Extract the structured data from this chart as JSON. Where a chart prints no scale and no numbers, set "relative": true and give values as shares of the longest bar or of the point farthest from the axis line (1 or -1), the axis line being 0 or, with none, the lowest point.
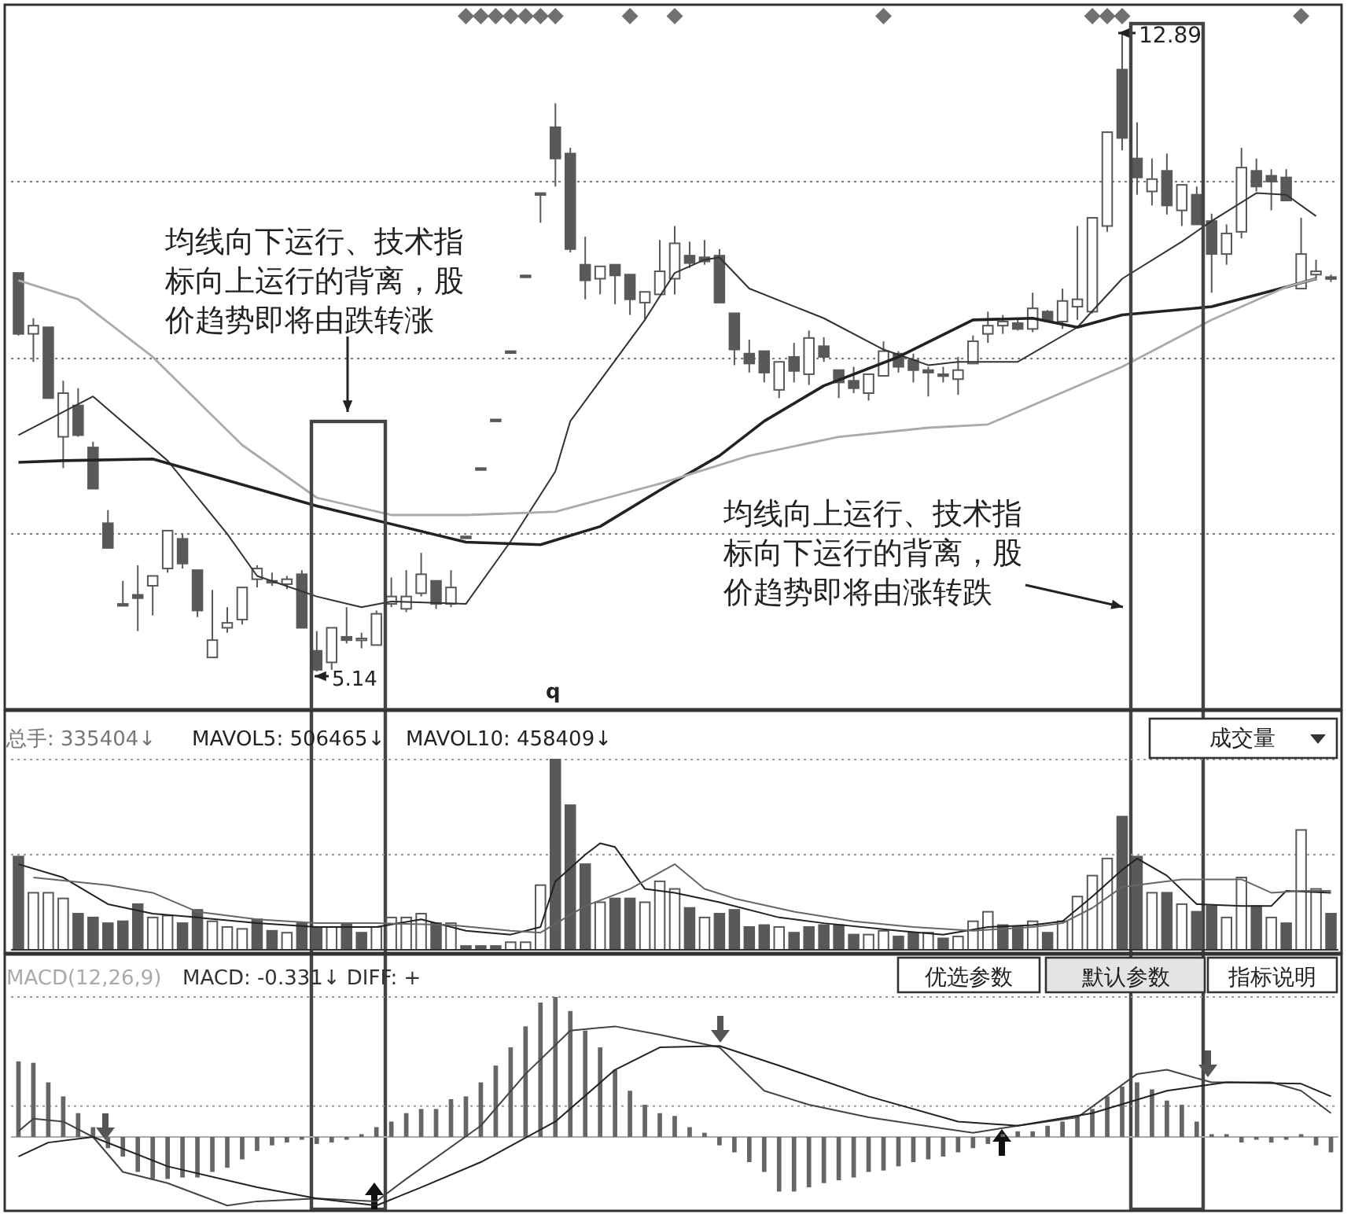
{
  "chart_data": [
    {
      "type": "candlestick",
      "color": "#595959",
      "grid": "y",
      "categories": [
        null,
        null,
        null,
        null,
        null,
        null,
        null,
        null,
        null,
        null,
        null,
        null,
        null,
        null,
        null,
        null,
        null,
        null,
        null,
        null,
        null,
        null,
        null,
        null,
        null,
        null,
        null,
        null,
        null,
        null,
        null,
        null,
        null,
        null,
        null,
        null,
        null,
        null,
        null,
        null,
        null,
        null,
        null,
        null,
        null,
        null,
        null,
        null,
        null,
        null,
        null,
        null,
        null,
        null,
        null,
        null,
        null,
        null,
        null,
        null,
        null,
        null,
        null,
        null,
        null,
        null,
        null,
        null,
        null,
        null,
        null,
        null,
        null,
        null,
        null,
        null,
        null,
        null,
        null,
        null,
        null,
        null,
        null,
        null,
        null,
        null,
        null,
        null,
        null
      ],
      "ylim": [
        4.7,
        13.2
      ],
      "yticks": [
        {
          "value": 6.81,
          "label": null
        },
        {
          "value": 8.94,
          "label": null
        },
        {
          "value": 11.09,
          "label": null
        }
      ],
      "ohlc": [
        [
          9.98,
          9.98,
          9.22,
          9.24
        ],
        [
          9.24,
          9.43,
          8.9,
          9.34
        ],
        [
          9.32,
          9.32,
          8.46,
          8.46
        ],
        [
          7.99,
          8.67,
          7.61,
          8.52
        ],
        [
          8.37,
          8.58,
          7.99,
          8.01
        ],
        [
          7.86,
          7.93,
          7.36,
          7.36
        ],
        [
          6.94,
          7.1,
          6.64,
          6.64
        ],
        [
          5.96,
          6.24,
          5.96,
          5.96
        ],
        [
          6.07,
          6.43,
          5.63,
          6.03
        ],
        [
          6.18,
          6.3,
          5.82,
          6.3
        ],
        [
          6.39,
          6.85,
          6.34,
          6.85
        ],
        [
          6.75,
          6.81,
          6.39,
          6.45
        ],
        [
          6.37,
          6.37,
          5.8,
          5.88
        ],
        [
          5.31,
          6.13,
          5.31,
          5.52
        ],
        [
          5.67,
          5.92,
          5.61,
          5.73
        ],
        [
          5.77,
          6.16,
          5.71,
          6.16
        ],
        [
          6.26,
          6.43,
          6.16,
          6.39
        ],
        [
          6.24,
          6.34,
          6.18,
          6.22
        ],
        [
          6.2,
          6.3,
          6.14,
          6.26
        ],
        [
          6.32,
          6.37,
          5.67,
          5.67
        ],
        [
          5.39,
          5.63,
          5.14,
          5.16
        ],
        [
          5.25,
          5.67,
          5.16,
          5.67
        ],
        [
          5.56,
          5.92,
          5.48,
          5.52
        ],
        [
          5.52,
          5.61,
          5.42,
          5.54
        ],
        [
          5.46,
          5.88,
          5.46,
          5.84
        ],
        [
          5.96,
          6.28,
          5.92,
          6.05
        ],
        [
          5.9,
          6.37,
          5.86,
          6.05
        ],
        [
          6.09,
          6.58,
          6.05,
          6.32
        ],
        [
          6.24,
          6.24,
          5.9,
          5.96
        ],
        [
          5.96,
          6.37,
          5.92,
          6.16
        ],
        [
          6.78,
          6.78,
          6.78,
          6.78
        ],
        [
          7.61,
          7.61,
          7.61,
          7.61
        ],
        [
          8.2,
          8.2,
          8.2,
          8.2
        ],
        [
          9.03,
          9.03,
          9.03,
          9.03
        ],
        [
          9.95,
          9.95,
          9.95,
          9.95
        ],
        [
          10.95,
          10.95,
          10.59,
          10.95
        ],
        [
          11.75,
          12.04,
          11.03,
          11.37
        ],
        [
          11.43,
          11.5,
          10.23,
          10.27
        ],
        [
          10.08,
          10.42,
          9.66,
          9.89
        ],
        [
          9.91,
          10.06,
          9.72,
          10.06
        ],
        [
          10.08,
          10.08,
          9.6,
          9.95
        ],
        [
          9.96,
          9.96,
          9.47,
          9.66
        ],
        [
          9.62,
          9.75,
          9.41,
          9.75
        ],
        [
          9.72,
          10.38,
          9.72,
          10.0
        ],
        [
          9.91,
          10.55,
          9.72,
          10.34
        ],
        [
          10.19,
          10.36,
          10.04,
          10.1
        ],
        [
          10.17,
          10.38,
          10.08,
          10.12
        ],
        [
          10.19,
          10.27,
          9.62,
          9.62
        ],
        [
          9.49,
          9.49,
          8.86,
          9.05
        ],
        [
          9.0,
          9.17,
          8.77,
          8.88
        ],
        [
          9.03,
          9.03,
          8.65,
          8.77
        ],
        [
          8.56,
          8.9,
          8.46,
          8.9
        ],
        [
          8.96,
          9.13,
          8.65,
          8.79
        ],
        [
          8.75,
          9.28,
          8.62,
          9.19
        ],
        [
          9.09,
          9.2,
          8.9,
          8.96
        ],
        [
          8.8,
          8.8,
          8.46,
          8.65
        ],
        [
          8.67,
          8.84,
          8.52,
          8.58
        ],
        [
          8.52,
          8.75,
          8.43,
          8.75
        ],
        [
          8.73,
          9.15,
          8.73,
          9.03
        ],
        [
          9.0,
          9.03,
          8.77,
          8.84
        ],
        [
          8.92,
          9.0,
          8.65,
          8.8
        ],
        [
          8.8,
          8.84,
          8.48,
          8.77
        ],
        [
          8.75,
          8.84,
          8.65,
          8.73
        ],
        [
          8.69,
          8.96,
          8.5,
          8.8
        ],
        [
          8.88,
          9.22,
          8.88,
          9.15
        ],
        [
          9.24,
          9.51,
          9.13,
          9.34
        ],
        [
          9.34,
          9.47,
          9.24,
          9.39
        ],
        [
          9.37,
          9.43,
          9.28,
          9.3
        ],
        [
          9.3,
          9.74,
          9.26,
          9.55
        ],
        [
          9.51,
          9.53,
          9.39,
          9.41
        ],
        [
          9.39,
          9.79,
          9.3,
          9.64
        ],
        [
          9.57,
          10.55,
          9.41,
          9.66
        ],
        [
          9.51,
          10.65,
          9.49,
          10.65
        ],
        [
          10.55,
          11.69,
          10.48,
          11.69
        ],
        [
          12.45,
          12.89,
          11.47,
          11.62
        ],
        [
          11.37,
          11.81,
          10.93,
          11.14
        ],
        [
          10.97,
          11.37,
          10.8,
          11.12
        ],
        [
          11.22,
          11.43,
          10.69,
          10.8
        ],
        [
          10.74,
          11.05,
          10.55,
          11.05
        ],
        [
          10.93,
          11.03,
          10.57,
          10.57
        ],
        [
          10.61,
          10.7,
          9.74,
          10.21
        ],
        [
          10.21,
          10.57,
          10.08,
          10.46
        ],
        [
          10.48,
          11.5,
          10.4,
          11.26
        ],
        [
          11.22,
          11.37,
          10.97,
          11.03
        ],
        [
          11.16,
          11.24,
          10.74,
          11.09
        ],
        [
          11.14,
          11.24,
          10.86,
          10.86
        ],
        [
          9.79,
          10.65,
          9.79,
          10.21
        ],
        [
          9.96,
          10.14,
          9.89,
          10.0
        ],
        [
          9.93,
          9.96,
          9.87,
          9.91
        ]
      ],
      "series": [
        {
          "type": "line",
          "color": "#333333",
          "values": [
            8.01,
            null,
            null,
            null,
            null,
            8.48,
            null,
            null,
            null,
            null,
            7.7,
            null,
            null,
            null,
            6.81,
            null,
            6.3,
            null,
            null,
            null,
            6.05,
            null,
            null,
            5.92,
            null,
            5.99,
            null,
            null,
            null,
            null,
            5.96,
            null,
            null,
            6.72,
            null,
            null,
            7.57,
            8.18,
            null,
            null,
            null,
            null,
            9.41,
            null,
            9.98,
            null,
            10.14,
            10.17,
            null,
            9.79,
            null,
            null,
            null,
            null,
            9.43,
            null,
            null,
            null,
            9.05,
            null,
            null,
            8.86,
            null,
            8.9,
            null,
            null,
            null,
            8.9,
            null,
            null,
            null,
            9.32,
            null,
            null,
            9.91,
            null,
            null,
            null,
            10.36,
            null,
            10.61,
            null,
            null,
            10.95,
            null,
            10.93,
            null,
            10.67,
            null
          ]
        },
        {
          "type": "line",
          "color": "#222222",
          "values": [
            7.68,
            null,
            null,
            7.7,
            null,
            null,
            null,
            null,
            null,
            7.72,
            null,
            null,
            null,
            null,
            null,
            null,
            null,
            null,
            null,
            null,
            7.15,
            null,
            null,
            null,
            null,
            null,
            null,
            null,
            null,
            null,
            6.71,
            null,
            null,
            null,
            null,
            6.68,
            null,
            null,
            null,
            6.9,
            null,
            null,
            null,
            7.34,
            null,
            null,
            null,
            7.76,
            null,
            null,
            8.18,
            null,
            null,
            null,
            8.61,
            null,
            null,
            null,
            null,
            8.96,
            null,
            null,
            null,
            null,
            9.41,
            null,
            null,
            null,
            9.43,
            null,
            null,
            9.32,
            null,
            null,
            9.47,
            null,
            null,
            null,
            null,
            null,
            9.57,
            null,
            null,
            null,
            null,
            9.81,
            null,
            9.91,
            null
          ]
        },
        {
          "type": "line",
          "color": "#aaaaaa",
          "values": [
            9.89,
            null,
            null,
            null,
            9.66,
            null,
            null,
            null,
            null,
            8.96,
            null,
            null,
            null,
            null,
            null,
            7.89,
            null,
            null,
            null,
            null,
            7.25,
            null,
            null,
            null,
            null,
            7.04,
            null,
            null,
            null,
            null,
            7.04,
            null,
            null,
            null,
            null,
            null,
            7.08,
            null,
            null,
            null,
            null,
            null,
            null,
            7.42,
            null,
            null,
            null,
            null,
            null,
            7.76,
            null,
            null,
            null,
            null,
            null,
            7.99,
            null,
            null,
            null,
            null,
            null,
            8.1,
            null,
            null,
            null,
            8.14,
            null,
            null,
            null,
            null,
            null,
            null,
            null,
            null,
            8.84,
            null,
            null,
            null,
            null,
            null,
            9.41,
            null,
            null,
            null,
            null,
            9.81,
            null,
            9.91,
            null
          ]
        },
        {
          "type": "scatter",
          "marker": "diamond",
          "color": "#707070",
          "values": [
            null,
            null,
            null,
            null,
            null,
            null,
            null,
            null,
            null,
            null,
            null,
            null,
            null,
            null,
            null,
            null,
            null,
            null,
            null,
            null,
            null,
            null,
            null,
            null,
            null,
            null,
            null,
            null,
            null,
            null,
            13.1,
            13.1,
            13.1,
            13.1,
            13.1,
            13.1,
            13.1,
            null,
            null,
            null,
            null,
            13.1,
            null,
            null,
            13.1,
            null,
            null,
            null,
            null,
            null,
            null,
            null,
            null,
            null,
            null,
            null,
            null,
            null,
            13.1,
            null,
            null,
            null,
            null,
            null,
            null,
            null,
            null,
            null,
            null,
            null,
            null,
            null,
            13.1,
            13.1,
            13.1,
            null,
            null,
            null,
            null,
            null,
            null,
            null,
            null,
            null,
            null,
            null,
            13.1,
            null,
            null
          ]
        }
      ],
      "annotations": [
        "均线向下运行、技术指标向上运行的背离，股价趋势即将由跌转涨",
        "均线向上运行、技术指标向下运行的背离，股价趋势即将由涨转跌",
        "12.89",
        "5.14",
        "q"
      ]
    },
    {
      "type": "bar",
      "relative": true,
      "categories": [
        null,
        null,
        null,
        null,
        null,
        null,
        null,
        null,
        null,
        null,
        null,
        null,
        null,
        null,
        null,
        null,
        null,
        null,
        null,
        null,
        null,
        null,
        null,
        null,
        null,
        null,
        null,
        null,
        null,
        null,
        null,
        null,
        null,
        null,
        null,
        null,
        null,
        null,
        null,
        null,
        null,
        null,
        null,
        null,
        null,
        null,
        null,
        null,
        null,
        null,
        null,
        null,
        null,
        null,
        null,
        null,
        null,
        null,
        null,
        null,
        null,
        null,
        null,
        null,
        null,
        null,
        null,
        null,
        null,
        null,
        null,
        null,
        null,
        null,
        null,
        null,
        null,
        null,
        null,
        null,
        null,
        null,
        null,
        null,
        null,
        null,
        null,
        null,
        null
      ],
      "ref_lines": [
        {
          "axis": "y",
          "value": 1,
          "line_style": "dotted",
          "color": "#999999"
        },
        {
          "axis": "y",
          "value": 0.5,
          "line_style": "dotted",
          "color": "#999999"
        }
      ],
      "series": [
        {
          "type": "bar",
          "color": "#595959",
          "values": [
            0.49,
            0.3,
            0.3,
            0.27,
            0.19,
            0.17,
            0.14,
            0.15,
            0.24,
            0.17,
            0.18,
            0.14,
            0.21,
            0.15,
            0.12,
            0.11,
            0.16,
            0.1,
            0.09,
            0.14,
            0.12,
            0.12,
            0.14,
            0.09,
            0.12,
            0.17,
            0.17,
            0.19,
            0.14,
            0.14,
            0.02,
            0.02,
            0.02,
            0.04,
            0.04,
            0.34,
            1,
            0.76,
            0.45,
            0.25,
            0.27,
            0.27,
            0.25,
            0.36,
            0.32,
            0.22,
            0.17,
            0.19,
            0.21,
            0.12,
            0.13,
            0.12,
            0.09,
            0.12,
            0.13,
            0.13,
            0.08,
            0.08,
            0.1,
            0.07,
            0.09,
            0.09,
            0.06,
            0.07,
            0.15,
            0.2,
            0.13,
            0.12,
            0.15,
            0.09,
            0.15,
            0.28,
            0.39,
            0.48,
            0.7,
            0.49,
            0.3,
            0.3,
            0.24,
            0.2,
            0.23,
            0.17,
            0.38,
            0.23,
            0.17,
            0.14,
            0.63,
            0.32,
            0.19
          ],
          "colors": [
            "#595959",
            "#ffffff",
            "#ffffff",
            "#ffffff",
            "#595959",
            "#595959",
            "#595959",
            "#595959",
            "#595959",
            "#ffffff",
            "#ffffff",
            "#595959",
            "#595959",
            "#ffffff",
            "#ffffff",
            "#ffffff",
            "#595959",
            "#595959",
            "#ffffff",
            "#595959",
            "#595959",
            "#ffffff",
            "#595959",
            "#595959",
            "#ffffff",
            "#ffffff",
            "#ffffff",
            "#ffffff",
            "#595959",
            "#ffffff",
            "#595959",
            "#595959",
            "#595959",
            "#ffffff",
            "#ffffff",
            "#ffffff",
            "#595959",
            "#595959",
            "#595959",
            "#ffffff",
            "#595959",
            "#595959",
            "#ffffff",
            "#ffffff",
            "#ffffff",
            "#595959",
            "#ffffff",
            "#595959",
            "#595959",
            "#595959",
            "#595959",
            "#ffffff",
            "#595959",
            "#595959",
            "#595959",
            "#595959",
            "#595959",
            "#ffffff",
            "#ffffff",
            "#595959",
            "#595959",
            "#ffffff",
            "#595959",
            "#ffffff",
            "#ffffff",
            "#ffffff",
            "#595959",
            "#595959",
            "#ffffff",
            "#595959",
            "#ffffff",
            "#ffffff",
            "#ffffff",
            "#ffffff",
            "#595959",
            "#595959",
            "#ffffff",
            "#595959",
            "#ffffff",
            "#595959",
            "#595959",
            "#ffffff",
            "#ffffff",
            "#595959",
            "#ffffff",
            "#595959",
            "#ffffff",
            "#ffffff",
            "#595959"
          ]
        },
        {
          "type": "line",
          "color": "#222222",
          "values": [
            0.45,
            null,
            null,
            0.38,
            null,
            null,
            0.24,
            null,
            null,
            0.19,
            null,
            null,
            0.17,
            null,
            null,
            null,
            0.14,
            null,
            null,
            null,
            0.12,
            null,
            null,
            null,
            0.12,
            null,
            null,
            0.16,
            null,
            null,
            0.1,
            null,
            null,
            0.08,
            null,
            0.12,
            0.36,
            null,
            0.5,
            0.56,
            0.54,
            null,
            0.32,
            null,
            0.3,
            null,
            null,
            0.25,
            null,
            null,
            null,
            0.17,
            null,
            null,
            0.14,
            null,
            null,
            null,
            null,
            0.1,
            null,
            null,
            0.08,
            null,
            null,
            0.12,
            null,
            null,
            0.13,
            null,
            0.15,
            null,
            0.28,
            null,
            0.42,
            0.48,
            null,
            0.39,
            null,
            0.24,
            null,
            null,
            0.23,
            null,
            0.23,
            0.31,
            null,
            null,
            0.3
          ]
        },
        {
          "type": "line",
          "color": "#666666",
          "values": [
            null,
            0.38,
            null,
            null,
            null,
            null,
            0.34,
            null,
            null,
            0.3,
            null,
            null,
            0.2,
            null,
            null,
            null,
            0.16,
            null,
            null,
            null,
            0.14,
            null,
            null,
            null,
            0.14,
            null,
            null,
            null,
            null,
            0.13,
            null,
            null,
            null,
            0.1,
            null,
            0.09,
            null,
            null,
            0.23,
            null,
            null,
            0.32,
            null,
            null,
            0.45,
            null,
            0.32,
            null,
            0.27,
            null,
            null,
            null,
            0.2,
            null,
            null,
            null,
            0.15,
            null,
            null,
            null,
            0.12,
            null,
            null,
            null,
            0.1,
            null,
            null,
            null,
            0.12,
            null,
            0.14,
            null,
            0.22,
            null,
            0.33,
            null,
            0.35,
            null,
            0.37,
            null,
            0.37,
            null,
            0.37,
            null,
            0.3,
            null,
            0.31,
            null,
            0.31
          ]
        }
      ],
      "annotations": [
        "总手: 335404↓",
        "MAVOL5: 506465↓",
        "MAVOL10: 458409↓",
        "成交量"
      ]
    },
    {
      "type": "bar",
      "relative": true,
      "categories": [
        null,
        null,
        null,
        null,
        null,
        null,
        null,
        null,
        null,
        null,
        null,
        null,
        null,
        null,
        null,
        null,
        null,
        null,
        null,
        null,
        null,
        null,
        null,
        null,
        null,
        null,
        null,
        null,
        null,
        null,
        null,
        null,
        null,
        null,
        null,
        null,
        null,
        null,
        null,
        null,
        null,
        null,
        null,
        null,
        null,
        null,
        null,
        null,
        null,
        null,
        null,
        null,
        null,
        null,
        null,
        null,
        null,
        null,
        null,
        null,
        null,
        null,
        null,
        null,
        null,
        null,
        null,
        null,
        null,
        null,
        null,
        null,
        null,
        null,
        null,
        null,
        null,
        null,
        null,
        null,
        null,
        null,
        null,
        null,
        null,
        null,
        null,
        null,
        null
      ],
      "ref_lines": [
        {
          "axis": "y",
          "value": 1,
          "line_style": "dotted",
          "color": "#999999"
        },
        {
          "axis": "y",
          "value": 0.22,
          "line_style": "dotted",
          "color": "#999999"
        }
      ],
      "series": [
        {
          "type": "bar",
          "color": "#666666",
          "values": [
            0.54,
            0.53,
            0.39,
            0.29,
            0.17,
            0.07,
            -0.08,
            -0.14,
            -0.25,
            -0.3,
            -0.3,
            -0.29,
            -0.29,
            -0.25,
            -0.22,
            -0.16,
            -0.1,
            -0.06,
            -0.04,
            -0.02,
            -0.05,
            -0.04,
            -0.02,
            0.02,
            0.07,
            0.11,
            0.17,
            0.2,
            0.2,
            0.27,
            0.29,
            0.39,
            0.51,
            0.64,
            0.79,
            0.96,
            1,
            0.9,
            0.76,
            0.64,
            0.48,
            0.33,
            0.23,
            0.17,
            0.15,
            0.07,
            0.03,
            -0.06,
            -0.11,
            -0.18,
            -0.25,
            -0.39,
            -0.39,
            -0.36,
            -0.33,
            -0.31,
            -0.29,
            -0.25,
            -0.24,
            -0.21,
            -0.18,
            -0.16,
            -0.14,
            -0.11,
            -0.08,
            -0.05,
            0.02,
            0.04,
            0.04,
            0.08,
            0.11,
            0.14,
            0.2,
            0.29,
            0.36,
            0.39,
            0.34,
            0.26,
            0.23,
            0.11,
            0.02,
            0.02,
            -0.04,
            -0.02,
            -0.04,
            -0.02,
            0.02,
            -0.06,
            -0.11
          ]
        },
        {
          "type": "line",
          "color": "#444444",
          "values": [
            0.04,
            0.13,
            null,
            0.11,
            null,
            0,
            null,
            -0.25,
            null,
            null,
            -0.33,
            null,
            null,
            null,
            -0.49,
            null,
            -0.46,
            null,
            null,
            null,
            -0.44,
            null,
            null,
            null,
            -0.46,
            null,
            -0.3,
            null,
            null,
            null,
            null,
            0.08,
            null,
            null,
            0.45,
            null,
            null,
            0.76,
            null,
            null,
            0.79,
            null,
            null,
            0.73,
            null,
            null,
            null,
            0.64,
            null,
            null,
            0.33,
            null,
            null,
            0.23,
            null,
            null,
            null,
            0.14,
            null,
            null,
            null,
            null,
            0.06,
            null,
            0.03,
            null,
            null,
            0.08,
            null,
            null,
            null,
            0.14,
            null,
            null,
            null,
            0.45,
            null,
            0.48,
            null,
            null,
            0.39,
            null,
            null,
            null,
            0.39,
            null,
            0.33,
            null,
            0.17
          ]
        },
        {
          "type": "line",
          "color": "#222222",
          "values": [
            -0.14,
            null,
            -0.04,
            null,
            null,
            0,
            null,
            null,
            null,
            null,
            -0.21,
            null,
            null,
            null,
            null,
            null,
            -0.36,
            null,
            null,
            null,
            -0.44,
            null,
            null,
            null,
            -0.49,
            null,
            null,
            -0.36,
            null,
            null,
            null,
            -0.18,
            null,
            null,
            null,
            null,
            0.11,
            null,
            null,
            null,
            0.48,
            null,
            null,
            0.64,
            null,
            null,
            null,
            0.65,
            null,
            null,
            null,
            0.51,
            null,
            null,
            null,
            null,
            null,
            0.29,
            null,
            null,
            null,
            null,
            null,
            0.11,
            null,
            null,
            null,
            0.08,
            null,
            null,
            null,
            null,
            0.17,
            null,
            null,
            null,
            null,
            0.33,
            null,
            null,
            null,
            0.39,
            null,
            null,
            null,
            null,
            0.38,
            null,
            0.29
          ]
        }
      ],
      "annotations": [
        "MACD(12,26,9)",
        "MACD: -0.331↓ DIFF: +",
        "优选参数",
        "默认参数",
        "指标说明"
      ]
    }
  ]
}
